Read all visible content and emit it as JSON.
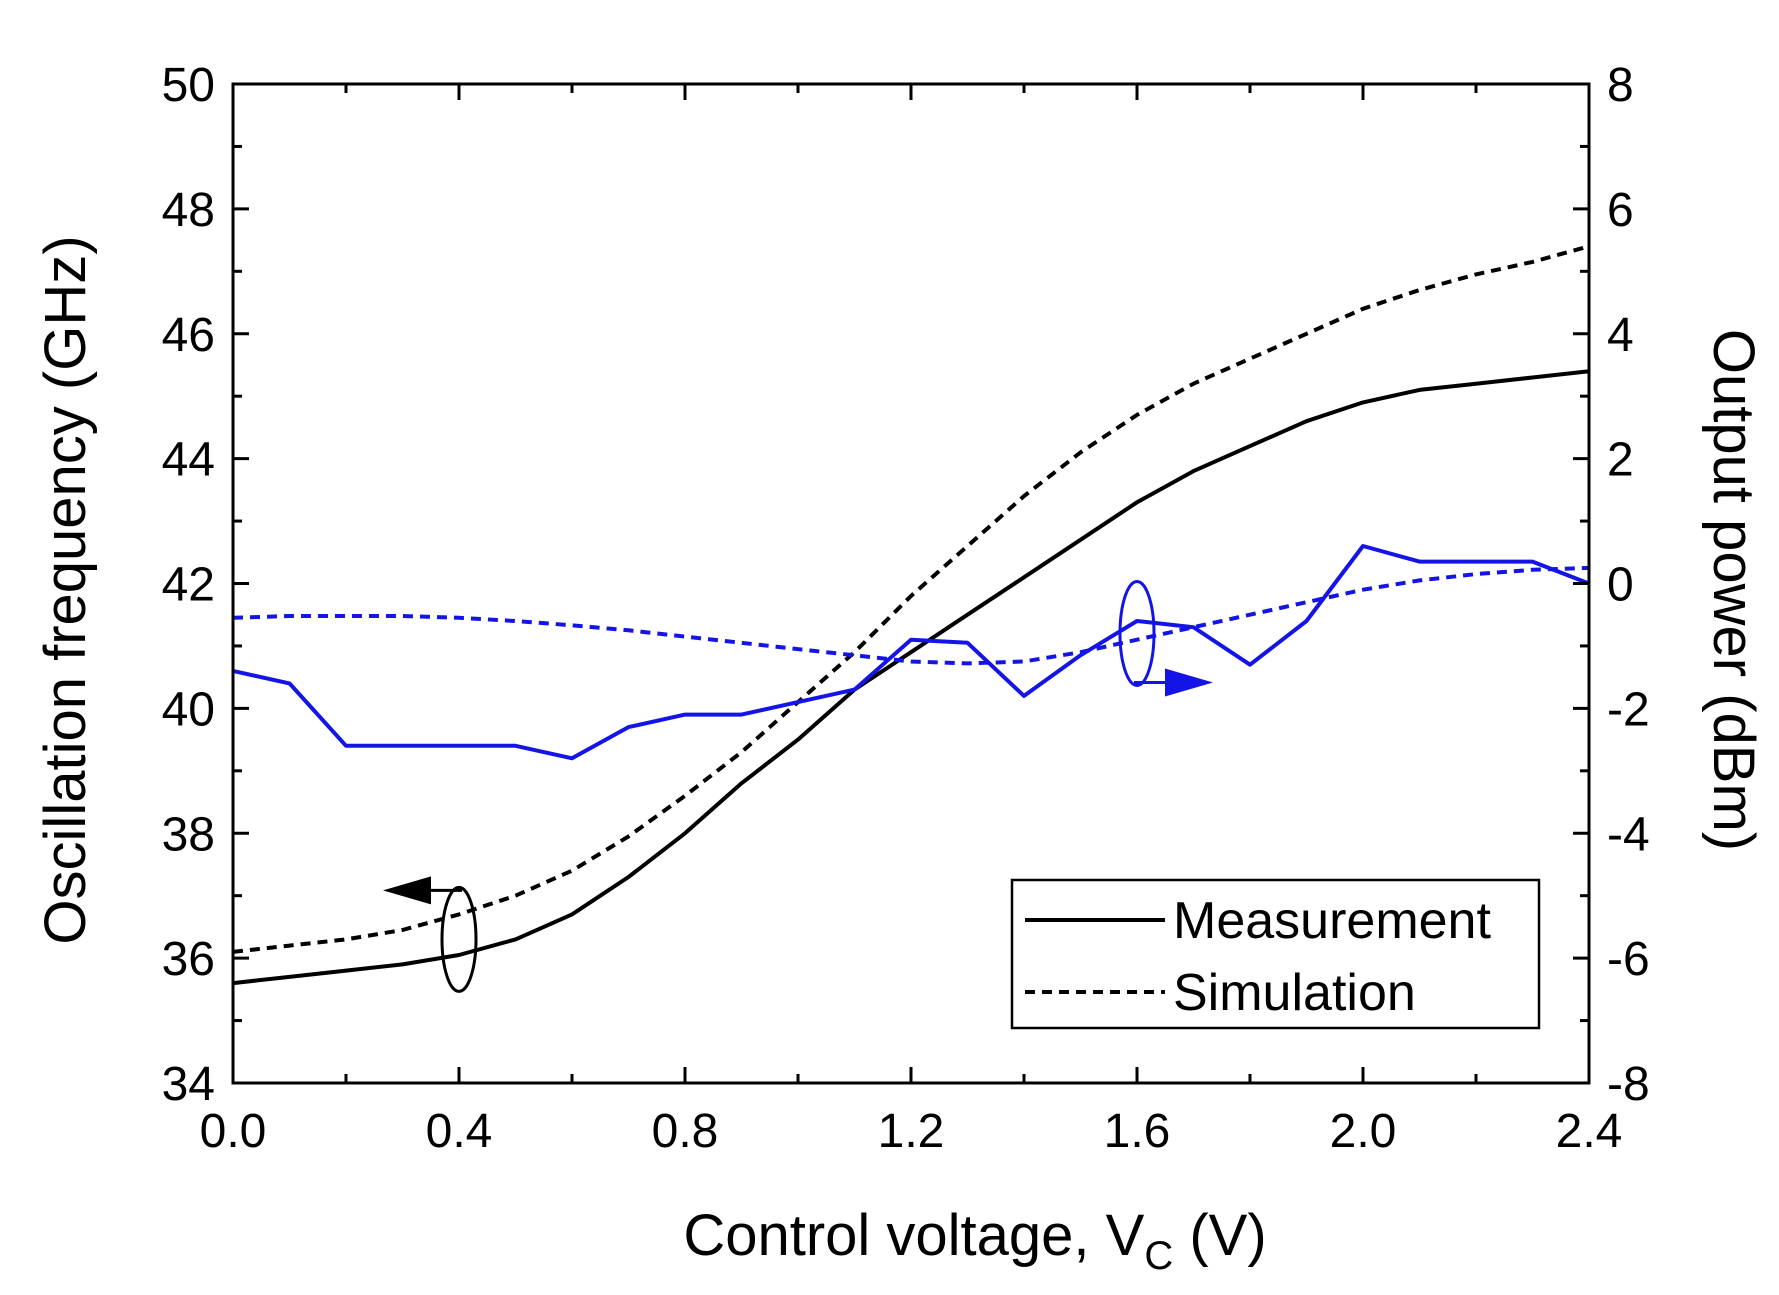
{
  "chart_data": {
    "type": "line",
    "title": "",
    "xlabel": "Control voltage, V",
    "xlabel_sub": "C",
    "xlabel_suffix": " (V)",
    "ylabel": "Oscillation frequency (GHz)",
    "y2label": "Output power (dBm)",
    "xlim": [
      0.0,
      2.4
    ],
    "ylim": [
      34,
      50
    ],
    "y2lim": [
      -8,
      8
    ],
    "x_ticks": [
      "0.0",
      "0.4",
      "0.8",
      "1.2",
      "1.6",
      "2.0",
      "2.4"
    ],
    "y_ticks": [
      "34",
      "36",
      "38",
      "40",
      "42",
      "44",
      "46",
      "48",
      "50"
    ],
    "y2_ticks": [
      "-8",
      "-6",
      "-4",
      "-2",
      "0",
      "2",
      "4",
      "6",
      "8"
    ],
    "legend": {
      "position": "bottom-right",
      "entries": [
        {
          "label": "Measurement",
          "style": "solid"
        },
        {
          "label": "Simulation",
          "style": "dashed"
        }
      ]
    },
    "colors": {
      "frequency": "#000000",
      "power": "#1414e6"
    },
    "series": [
      {
        "name": "Measured frequency",
        "axis": "left",
        "style": "solid",
        "color": "#000000",
        "x": [
          0.0,
          0.1,
          0.2,
          0.3,
          0.4,
          0.5,
          0.6,
          0.7,
          0.8,
          0.9,
          1.0,
          1.1,
          1.2,
          1.3,
          1.4,
          1.5,
          1.6,
          1.7,
          1.8,
          1.9,
          2.0,
          2.1,
          2.2,
          2.3,
          2.4
        ],
        "y": [
          35.6,
          35.7,
          35.8,
          35.9,
          36.05,
          36.3,
          36.7,
          37.3,
          38.0,
          38.8,
          39.5,
          40.3,
          40.9,
          41.5,
          42.1,
          42.7,
          43.3,
          43.8,
          44.2,
          44.6,
          44.9,
          45.1,
          45.2,
          45.3,
          45.4
        ]
      },
      {
        "name": "Simulated frequency",
        "axis": "left",
        "style": "dashed",
        "color": "#000000",
        "x": [
          0.0,
          0.1,
          0.2,
          0.3,
          0.4,
          0.5,
          0.6,
          0.7,
          0.8,
          0.9,
          1.0,
          1.1,
          1.2,
          1.3,
          1.4,
          1.5,
          1.6,
          1.7,
          1.8,
          1.9,
          2.0,
          2.1,
          2.2,
          2.3,
          2.4
        ],
        "y": [
          36.1,
          36.2,
          36.3,
          36.45,
          36.7,
          37.0,
          37.4,
          37.95,
          38.6,
          39.3,
          40.1,
          40.9,
          41.8,
          42.6,
          43.4,
          44.1,
          44.7,
          45.2,
          45.6,
          46.0,
          46.4,
          46.7,
          46.95,
          47.15,
          47.4
        ]
      },
      {
        "name": "Measured output power",
        "axis": "right",
        "style": "solid",
        "color": "#1414e6",
        "x": [
          0.0,
          0.1,
          0.2,
          0.3,
          0.4,
          0.5,
          0.6,
          0.7,
          0.8,
          0.9,
          1.0,
          1.1,
          1.2,
          1.3,
          1.4,
          1.5,
          1.6,
          1.7,
          1.8,
          1.9,
          2.0,
          2.1,
          2.2,
          2.3,
          2.4
        ],
        "y": [
          -1.4,
          -1.6,
          -2.6,
          -2.6,
          -2.6,
          -2.6,
          -2.8,
          -2.3,
          -2.1,
          -2.1,
          -1.9,
          -1.7,
          -0.9,
          -0.95,
          -1.8,
          -1.15,
          -0.6,
          -0.7,
          -1.3,
          -0.6,
          0.6,
          0.35,
          0.35,
          0.35,
          0.0
        ]
      },
      {
        "name": "Simulated output power",
        "axis": "right",
        "style": "dashed",
        "color": "#1414e6",
        "x": [
          0.0,
          0.1,
          0.2,
          0.3,
          0.4,
          0.5,
          0.6,
          0.7,
          0.8,
          0.9,
          1.0,
          1.1,
          1.2,
          1.3,
          1.4,
          1.5,
          1.6,
          1.7,
          1.8,
          1.9,
          2.0,
          2.1,
          2.2,
          2.3,
          2.4
        ],
        "y": [
          -0.55,
          -0.52,
          -0.52,
          -0.52,
          -0.55,
          -0.6,
          -0.67,
          -0.75,
          -0.85,
          -0.95,
          -1.05,
          -1.15,
          -1.25,
          -1.28,
          -1.25,
          -1.1,
          -0.9,
          -0.7,
          -0.5,
          -0.3,
          -0.1,
          0.05,
          0.15,
          0.22,
          0.25
        ]
      }
    ],
    "annotations": [
      {
        "type": "ellipse-arrow",
        "target_axis": "left",
        "arrow_direction": "left",
        "x": 0.4,
        "y": 36.3
      },
      {
        "type": "ellipse-arrow",
        "target_axis": "right",
        "arrow_direction": "right",
        "x": 1.6,
        "y": -0.8
      }
    ]
  }
}
